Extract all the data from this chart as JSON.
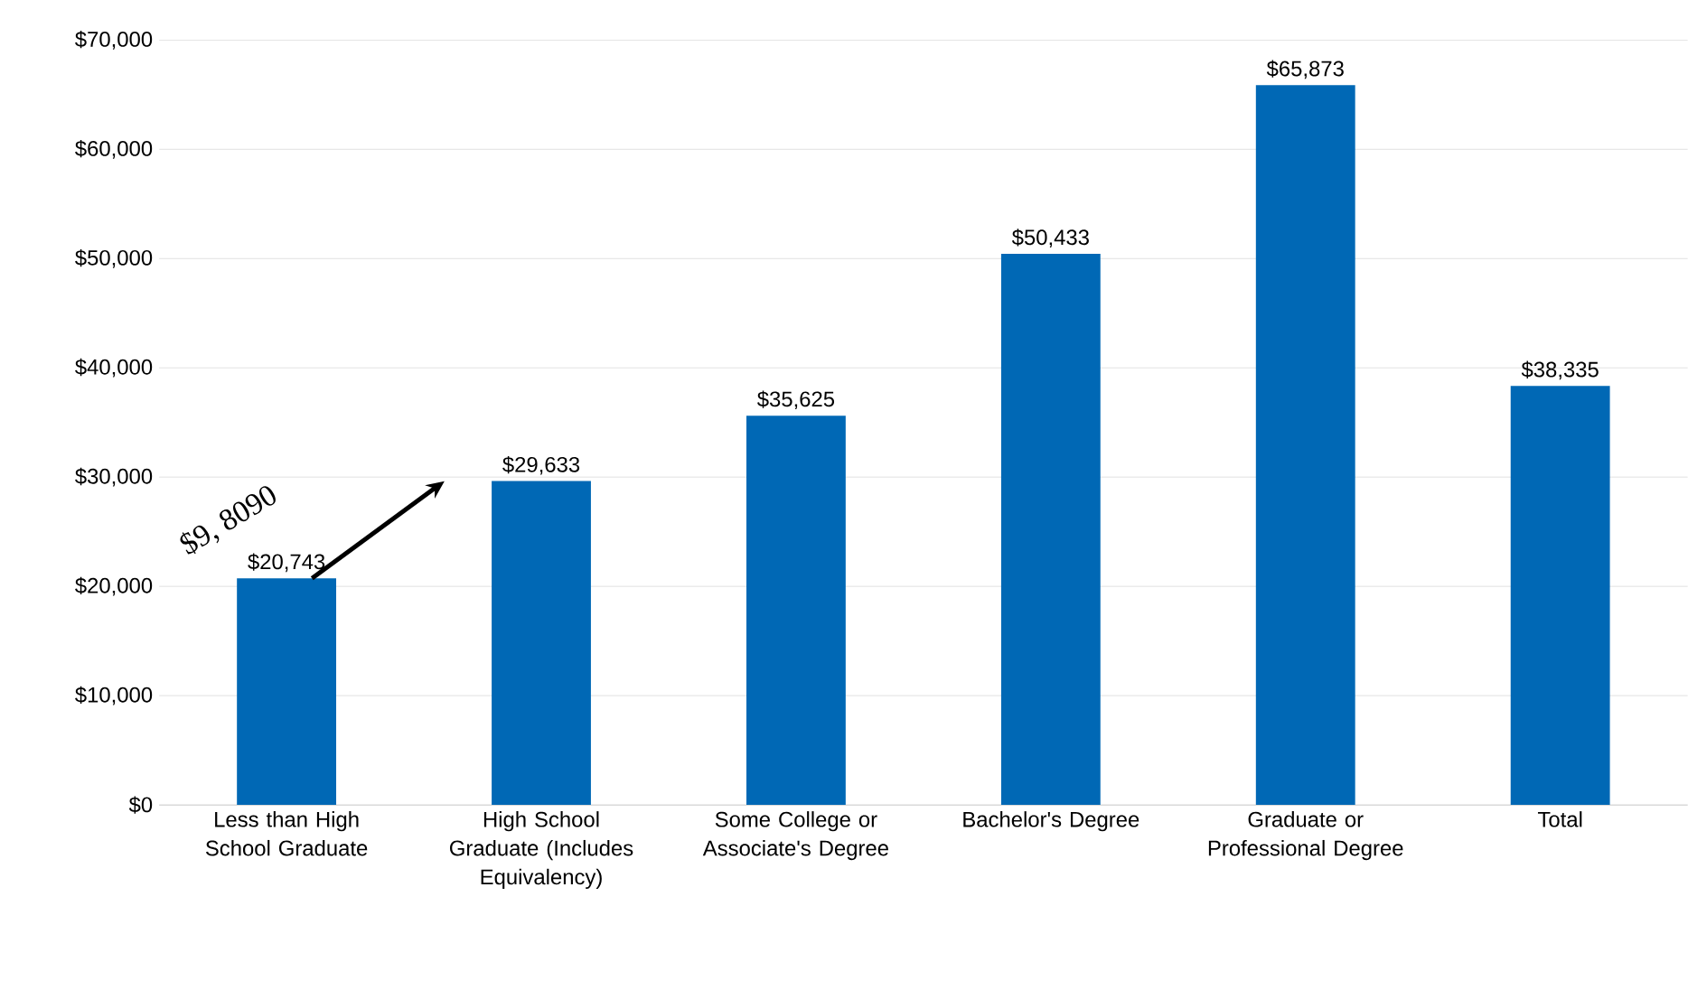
{
  "chart_data": {
    "type": "bar",
    "categories": [
      "Less than High School Graduate",
      "High School Graduate (Includes Equivalency)",
      "Some College or Associate's Degree",
      "Bachelor's Degree",
      "Graduate or Professional Degree",
      "Total"
    ],
    "values": [
      20743,
      29633,
      35625,
      50433,
      65873,
      38335
    ],
    "value_labels": [
      "$20,743",
      "$29,633",
      "$35,625",
      "$50,433",
      "$65,873",
      "$38,335"
    ],
    "color": "#0068b5",
    "ylim": [
      0,
      70000
    ],
    "yticks": [
      {
        "value": 0,
        "label": "$0"
      },
      {
        "value": 10000,
        "label": "$10,000"
      },
      {
        "value": 20000,
        "label": "$20,000"
      },
      {
        "value": 30000,
        "label": "$30,000"
      },
      {
        "value": 40000,
        "label": "$40,000"
      },
      {
        "value": 50000,
        "label": "$50,000"
      },
      {
        "value": 60000,
        "label": "$60,000"
      },
      {
        "value": 70000,
        "label": "$70,000"
      }
    ],
    "grid": "y",
    "annotations": [
      "$9, 8090"
    ]
  }
}
